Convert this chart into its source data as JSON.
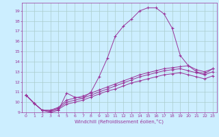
{
  "title": "",
  "xlabel": "Windchill (Refroidissement éolien,°C)",
  "ylabel": "",
  "background_color": "#cceeff",
  "grid_color": "#aacccc",
  "line_color": "#993399",
  "xlim": [
    -0.5,
    23.5
  ],
  "ylim": [
    9.0,
    19.8
  ],
  "yticks": [
    9,
    10,
    11,
    12,
    13,
    14,
    15,
    16,
    17,
    18,
    19
  ],
  "xticks": [
    0,
    1,
    2,
    3,
    4,
    5,
    6,
    7,
    8,
    9,
    10,
    11,
    12,
    13,
    14,
    15,
    16,
    17,
    18,
    19,
    20,
    21,
    22,
    23
  ],
  "series1_x": [
    0,
    1,
    2,
    3,
    4,
    5,
    6,
    7,
    8,
    9,
    10,
    11,
    12,
    13,
    14,
    15,
    16,
    17,
    18,
    19,
    20,
    21,
    22,
    23
  ],
  "series1_y": [
    10.7,
    9.9,
    9.2,
    9.0,
    9.2,
    10.9,
    10.5,
    10.4,
    11.0,
    12.5,
    14.3,
    16.5,
    17.5,
    18.2,
    19.0,
    19.3,
    19.3,
    18.7,
    17.3,
    14.6,
    13.6,
    13.0,
    12.8,
    13.3
  ],
  "series2_x": [
    0,
    1,
    2,
    3,
    4,
    5,
    6,
    7,
    8,
    9,
    10,
    11,
    12,
    13,
    14,
    15,
    16,
    17,
    18,
    19,
    20,
    21,
    22,
    23
  ],
  "series2_y": [
    10.7,
    9.9,
    9.2,
    9.2,
    9.5,
    10.2,
    10.4,
    10.6,
    10.9,
    11.2,
    11.5,
    11.8,
    12.1,
    12.4,
    12.7,
    12.9,
    13.1,
    13.3,
    13.4,
    13.5,
    13.6,
    13.2,
    13.0,
    13.3
  ],
  "series3_x": [
    0,
    1,
    2,
    3,
    4,
    5,
    6,
    7,
    8,
    9,
    10,
    11,
    12,
    13,
    14,
    15,
    16,
    17,
    18,
    19,
    20,
    21,
    22,
    23
  ],
  "series3_y": [
    10.7,
    9.9,
    9.2,
    9.2,
    9.4,
    10.0,
    10.2,
    10.4,
    10.7,
    11.0,
    11.3,
    11.6,
    11.9,
    12.2,
    12.5,
    12.7,
    12.9,
    13.1,
    13.2,
    13.3,
    13.1,
    12.9,
    12.7,
    13.0
  ],
  "series4_x": [
    0,
    1,
    2,
    3,
    4,
    5,
    6,
    7,
    8,
    9,
    10,
    11,
    12,
    13,
    14,
    15,
    16,
    17,
    18,
    19,
    20,
    21,
    22,
    23
  ],
  "series4_y": [
    10.7,
    9.9,
    9.2,
    9.1,
    9.3,
    9.8,
    10.0,
    10.2,
    10.5,
    10.8,
    11.1,
    11.3,
    11.6,
    11.9,
    12.1,
    12.3,
    12.5,
    12.7,
    12.8,
    12.9,
    12.7,
    12.5,
    12.3,
    12.6
  ]
}
